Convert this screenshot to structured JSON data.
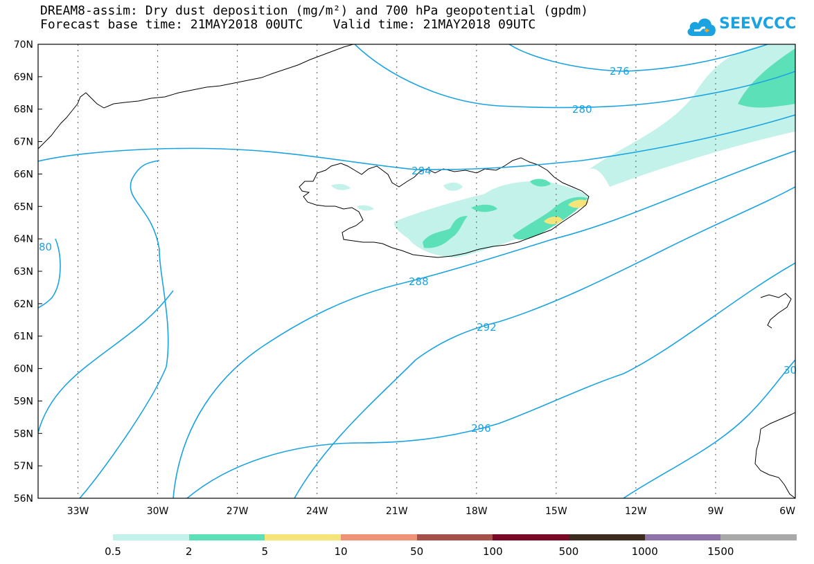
{
  "title": {
    "line1": "DREAM8-assim: Dry dust deposition (mg/m²) and 700 hPa geopotential (gpdm)",
    "line2": "Forecast base time: 21MAY2018 00UTC    Valid time: 21MAY2018 09UTC"
  },
  "logo": {
    "text": "SEEVCCC",
    "icon": "cloud-icon",
    "color": "#1aa3e0"
  },
  "map": {
    "lon_range": [
      -34.5,
      -6
    ],
    "lat_range": [
      56,
      70
    ],
    "gridlines": "dotted",
    "lon_ticks": [
      "33W",
      "30W",
      "27W",
      "24W",
      "21W",
      "18W",
      "15W",
      "12W",
      "9W",
      "6W"
    ],
    "lat_ticks": [
      "70N",
      "69N",
      "68N",
      "67N",
      "66N",
      "65N",
      "64N",
      "63N",
      "62N",
      "61N",
      "60N",
      "59N",
      "58N",
      "57N",
      "56N"
    ],
    "contour_color": "#1aa3e0",
    "contour_labels": [
      {
        "text": "276"
      },
      {
        "text": "280"
      },
      {
        "text": "284"
      },
      {
        "text": "288"
      },
      {
        "text": "292"
      },
      {
        "text": "296"
      },
      {
        "text": "80"
      },
      {
        "text": "30"
      }
    ]
  },
  "colorbar": {
    "colors": [
      "#c2f2e9",
      "#5ce0b8",
      "#f5e47a",
      "#ee9378",
      "#a5514a",
      "#780a28",
      "#3d2b1f",
      "#8e73a8",
      "#a9a9a9"
    ],
    "labels": [
      "0.5",
      "2",
      "5",
      "10",
      "50",
      "100",
      "500",
      "1000",
      "1500"
    ]
  }
}
